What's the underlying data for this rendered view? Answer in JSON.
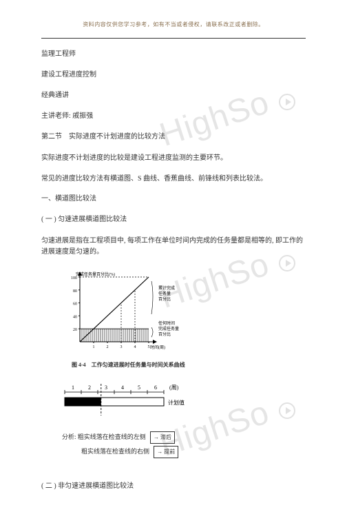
{
  "header_note": "资料内容仅供您学习参考，如有不当或者侵权，请联系改正或者删除。",
  "title1": "监理工程师",
  "title2": "建设工程进度控制",
  "title3": "经典通讲",
  "teacher": "主讲老师: 戚振强",
  "section": "第二节　实际进度不计划进度的比较方法",
  "p1": "实际进度不计划进度的比较是建设工程进度监测的主要环节。",
  "p2": "常见的进度比较方法有横道图、S 曲线、香蕉曲线、前锋线和列表比较法。",
  "h1": "一、横道图比较法",
  "h2": "( 一 ) 匀速进展横道图比较法",
  "p3": "匀速进展是指在工程项目中, 每项工作在单位时间内完成的任务量都是相等的, 即工作的进展速度是匀速的。",
  "chart": {
    "y_label": "完成任务量百分比(%)",
    "y_ticks": [
      "100",
      "80",
      "60",
      "40",
      "20"
    ],
    "x_label": "时间(周)",
    "x_ticks": [
      "1",
      "2",
      "3",
      "4",
      "5"
    ],
    "label_top": "累计完成\n任务量\n百分比",
    "label_right": "任何时间\n完成任务量\n百分比",
    "caption": "图 4-4　工作匀速进展时任务量与时间关系曲线",
    "colors": {
      "axis": "#000000",
      "grid": "#000000",
      "hatch": "#000000",
      "bg": "#ffffff"
    }
  },
  "gantt": {
    "weeks": [
      "1",
      "2",
      "3",
      "4",
      "5",
      "6"
    ],
    "unit": "(周)",
    "plan_label": "计划值",
    "actual_end": 2.2,
    "plan_end": 6,
    "check_time": 2.2
  },
  "analysis": {
    "lead": "分析:",
    "r1": "粗实线落在检查线的左侧",
    "r1_tag": "滞后",
    "r2": "粗实线落在检查线的右侧",
    "r2_tag": "提前"
  },
  "h3": "( 二 ) 非匀速进展横道图比较法"
}
